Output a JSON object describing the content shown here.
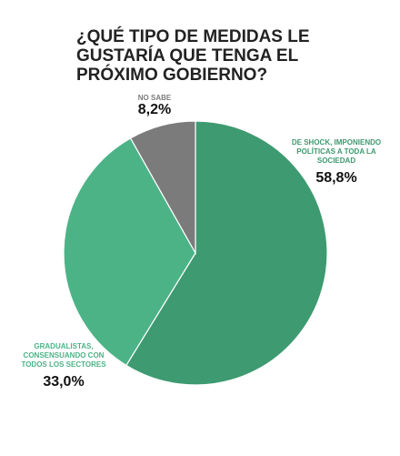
{
  "chart_data": {
    "type": "pie",
    "title": "¿QUÉ TIPO DE MEDIDAS LE GUSTARÍA QUE TENGA EL PRÓXIMO GOBIERNO?",
    "categories": [
      "DE SHOCK, IMPONIENDO POLÍTICAS A TODA LA SOCIEDAD",
      "GRADUALISTAS, CONSENSUANDO CON TODOS LOS SECTORES",
      "NO SABE"
    ],
    "values": [
      58.8,
      33.0,
      8.2
    ],
    "value_labels": [
      "58,8%",
      "33,0%",
      "8,2%"
    ],
    "colors": [
      "#3e9a70",
      "#4cb387",
      "#7b7b7b"
    ]
  }
}
